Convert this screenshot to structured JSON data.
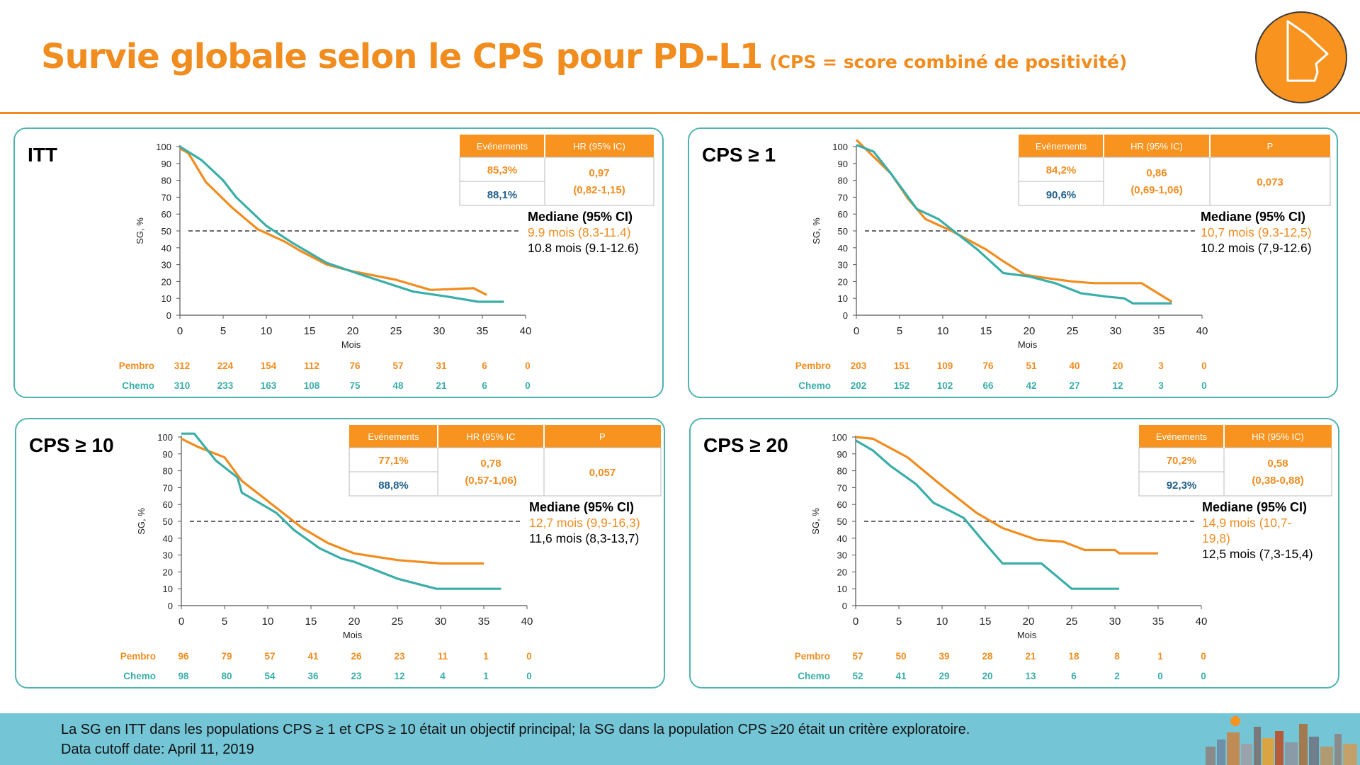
{
  "title": {
    "main": "Survie globale selon le CPS pour PD-L1",
    "sub": "(CPS = score combiné de positivité)"
  },
  "colors": {
    "pembro": "#f18c1f",
    "chemo": "#3aaea8",
    "chemo_text": "#1f5f8b",
    "panel_border": "#4fb3b1",
    "footer_bg": "#74c5d6"
  },
  "footer": {
    "line1": "La SG en ITT dans les populations CPS ≥ 1 et CPS ≥ 10 était un objectif principal; la SG dans la population CPS ≥20 était un critère exploratoire.",
    "line2": "Data cutoff date: April 11, 2019"
  },
  "chart_data": [
    {
      "type": "line",
      "panel_label": "ITT",
      "xlabel": "Mois",
      "ylabel": "SG, %",
      "xlim": [
        0,
        40
      ],
      "ylim": [
        0,
        100
      ],
      "xticks": [
        0,
        5,
        10,
        15,
        20,
        25,
        30,
        35,
        40
      ],
      "yticks": [
        0,
        10,
        20,
        30,
        40,
        50,
        60,
        70,
        80,
        90,
        100
      ],
      "reference_line_y": 50,
      "series": [
        {
          "name": "Pembro",
          "color": "#f18c1f",
          "points": [
            [
              0,
              99
            ],
            [
              1,
              96
            ],
            [
              3,
              79
            ],
            [
              6,
              64
            ],
            [
              9,
              51
            ],
            [
              12,
              44
            ],
            [
              14,
              38
            ],
            [
              17,
              30
            ],
            [
              20,
              26
            ],
            [
              25,
              21
            ],
            [
              29,
              15
            ],
            [
              34,
              16
            ],
            [
              35.5,
              12
            ]
          ]
        },
        {
          "name": "Chemo",
          "color": "#3aaea8",
          "points": [
            [
              0,
              100
            ],
            [
              2.5,
              92
            ],
            [
              5,
              80
            ],
            [
              6.5,
              70
            ],
            [
              10,
              53
            ],
            [
              13,
              43
            ],
            [
              17,
              31
            ],
            [
              21,
              24
            ],
            [
              27,
              14
            ],
            [
              31,
              11
            ],
            [
              34.5,
              8
            ],
            [
              37.5,
              8
            ]
          ]
        }
      ],
      "at_risk": {
        "x": [
          0,
          5,
          10,
          15,
          20,
          25,
          30,
          35,
          40
        ],
        "rows": [
          {
            "label": "Pembro",
            "values": [
              "312",
              "224",
              "154",
              "112",
              "76",
              "57",
              "31",
              "6",
              "0"
            ]
          },
          {
            "label": "Chemo",
            "values": [
              "310",
              "233",
              "163",
              "108",
              "75",
              "48",
              "21",
              "6",
              "0"
            ]
          }
        ]
      },
      "table": {
        "headers": [
          "Evénements",
          "HR (95% IC)"
        ],
        "pembro_events": "85,3%",
        "chemo_events": "88,1%",
        "hr": "0,97",
        "ci": "(0,82-1,15)",
        "p": ""
      },
      "median": {
        "label": "Mediane (95% CI)",
        "pembro": "9.9 mois (8.3-11.4)",
        "chemo": "10.8 mois (9.1-12.6)"
      }
    },
    {
      "type": "line",
      "panel_label": "CPS ≥ 1",
      "xlabel": "Mois",
      "ylabel": "SG, %",
      "xlim": [
        0,
        40
      ],
      "ylim": [
        0,
        100
      ],
      "xticks": [
        0,
        5,
        10,
        15,
        20,
        25,
        30,
        35,
        40
      ],
      "yticks": [
        0,
        10,
        20,
        30,
        40,
        50,
        60,
        70,
        80,
        90,
        100
      ],
      "reference_line_y": 50,
      "series": [
        {
          "name": "Pembro",
          "color": "#f18c1f",
          "points": [
            [
              0,
              104
            ],
            [
              2,
              94
            ],
            [
              4,
              84
            ],
            [
              6,
              69
            ],
            [
              8,
              57
            ],
            [
              11,
              50
            ],
            [
              15,
              39
            ],
            [
              17,
              32
            ],
            [
              19.5,
              24
            ],
            [
              22,
              22
            ],
            [
              25,
              20
            ],
            [
              27.5,
              19
            ],
            [
              33,
              19
            ],
            [
              36.5,
              8
            ]
          ]
        },
        {
          "name": "Chemo",
          "color": "#3aaea8",
          "points": [
            [
              0,
              101
            ],
            [
              2,
              97
            ],
            [
              4,
              84
            ],
            [
              7,
              63
            ],
            [
              9.5,
              57
            ],
            [
              11,
              51
            ],
            [
              14,
              39
            ],
            [
              17,
              25
            ],
            [
              20,
              23
            ],
            [
              23,
              19
            ],
            [
              26,
              13
            ],
            [
              29,
              11
            ],
            [
              31,
              10
            ],
            [
              32,
              7
            ],
            [
              36.5,
              7
            ]
          ]
        }
      ],
      "at_risk": {
        "x": [
          0,
          5,
          10,
          15,
          20,
          25,
          30,
          35,
          40
        ],
        "rows": [
          {
            "label": "Pembro",
            "values": [
              "203",
              "151",
              "109",
              "76",
              "51",
              "40",
              "20",
              "3",
              "0"
            ]
          },
          {
            "label": "Chemo",
            "values": [
              "202",
              "152",
              "102",
              "66",
              "42",
              "27",
              "12",
              "3",
              "0"
            ]
          }
        ]
      },
      "table": {
        "headers": [
          "Evénements",
          "HR (95% IC)",
          "P"
        ],
        "pembro_events": "84,2%",
        "chemo_events": "90,6%",
        "hr": "0,86",
        "ci": "(0,69-1,06)",
        "p": "0,073"
      },
      "median": {
        "label": "Mediane (95% CI)",
        "pembro": "10,7 mois (9.3-12,5)",
        "chemo": "10.2 mois (7,9-12.6)"
      }
    },
    {
      "type": "line",
      "panel_label": "CPS ≥ 10",
      "xlabel": "Mois",
      "ylabel": "SG, %",
      "xlim": [
        0,
        40
      ],
      "ylim": [
        0,
        100
      ],
      "xticks": [
        0,
        5,
        10,
        15,
        20,
        25,
        30,
        35,
        40
      ],
      "yticks": [
        0,
        10,
        20,
        30,
        40,
        50,
        60,
        70,
        80,
        90,
        100
      ],
      "reference_line_y": 50,
      "series": [
        {
          "name": "Pembro",
          "color": "#f18c1f",
          "points": [
            [
              0,
              99
            ],
            [
              2,
              94
            ],
            [
              5,
              88
            ],
            [
              7,
              74
            ],
            [
              10,
              62
            ],
            [
              12,
              54
            ],
            [
              14,
              46
            ],
            [
              17,
              37
            ],
            [
              20,
              31
            ],
            [
              25,
              27
            ],
            [
              30,
              25
            ],
            [
              35,
              25
            ]
          ]
        },
        {
          "name": "Chemo",
          "color": "#3aaea8",
          "points": [
            [
              0,
              102
            ],
            [
              1,
              102
            ],
            [
              1.5,
              102
            ],
            [
              4,
              86
            ],
            [
              6.5,
              76
            ],
            [
              7,
              67
            ],
            [
              9,
              61
            ],
            [
              11,
              55
            ],
            [
              13,
              45
            ],
            [
              16,
              34
            ],
            [
              18.5,
              28
            ],
            [
              20,
              26
            ],
            [
              25,
              16
            ],
            [
              29.5,
              10
            ],
            [
              37,
              10
            ]
          ]
        }
      ],
      "at_risk": {
        "x": [
          0,
          5,
          10,
          15,
          20,
          25,
          30,
          35,
          40
        ],
        "rows": [
          {
            "label": "Pembro",
            "values": [
              "96",
              "79",
              "57",
              "41",
              "26",
              "23",
              "11",
              "1",
              "0"
            ]
          },
          {
            "label": "Chemo",
            "values": [
              "98",
              "80",
              "54",
              "36",
              "23",
              "12",
              "4",
              "1",
              "0"
            ]
          }
        ]
      },
      "table": {
        "headers": [
          "Evénements",
          "HR (95% IC",
          "P"
        ],
        "pembro_events": "77,1%",
        "chemo_events": "88,8%",
        "hr": "0,78",
        "ci": "(0,57-1,06)",
        "p": "0,057"
      },
      "median": {
        "label": "Mediane (95% CI)",
        "pembro": "12,7 mois (9,9-16,3)",
        "chemo": "11,6 mois (8,3-13,7)"
      }
    },
    {
      "type": "line",
      "panel_label": "CPS ≥ 20",
      "xlabel": "Mois",
      "ylabel": "SG, %",
      "xlim": [
        0,
        40
      ],
      "ylim": [
        0,
        100
      ],
      "xticks": [
        0,
        5,
        10,
        15,
        20,
        25,
        30,
        35,
        40
      ],
      "yticks": [
        0,
        10,
        20,
        30,
        40,
        50,
        60,
        70,
        80,
        90,
        100
      ],
      "reference_line_y": 50,
      "series": [
        {
          "name": "Pembro",
          "color": "#f18c1f",
          "points": [
            [
              0,
              100
            ],
            [
              2,
              99
            ],
            [
              6,
              88
            ],
            [
              10,
              71
            ],
            [
              14,
              55
            ],
            [
              17,
              46
            ],
            [
              21,
              39
            ],
            [
              24,
              38
            ],
            [
              26.5,
              33
            ],
            [
              30,
              33
            ],
            [
              30.5,
              31
            ],
            [
              35,
              31
            ]
          ]
        },
        {
          "name": "Chemo",
          "color": "#3aaea8",
          "points": [
            [
              0,
              98
            ],
            [
              2,
              92
            ],
            [
              4,
              83
            ],
            [
              7,
              72
            ],
            [
              9,
              61
            ],
            [
              11,
              56
            ],
            [
              12.5,
              52
            ],
            [
              14.8,
              38
            ],
            [
              17,
              25
            ],
            [
              21.5,
              25
            ],
            [
              25,
              10
            ],
            [
              30.5,
              10
            ]
          ]
        }
      ],
      "at_risk": {
        "x": [
          0,
          5,
          10,
          15,
          20,
          25,
          30,
          35,
          40
        ],
        "rows": [
          {
            "label": "Pembro",
            "values": [
              "57",
              "50",
              "39",
              "28",
              "21",
              "18",
              "8",
              "1",
              "0"
            ]
          },
          {
            "label": "Chemo",
            "values": [
              "52",
              "41",
              "29",
              "20",
              "13",
              "6",
              "2",
              "0",
              "0"
            ]
          }
        ]
      },
      "table": {
        "headers": [
          "Evénements",
          "HR (95% IC)"
        ],
        "pembro_events": "70,2%",
        "chemo_events": "92,3%",
        "hr": "0,58",
        "ci": "(0,38-0,88)",
        "p": ""
      },
      "median": {
        "label": "Mediane (95% CI)",
        "pembro_lines": [
          "14,9 mois (10,7-",
          "19,8)"
        ],
        "chemo": "12,5 mois (7,3-15,4)"
      }
    }
  ]
}
